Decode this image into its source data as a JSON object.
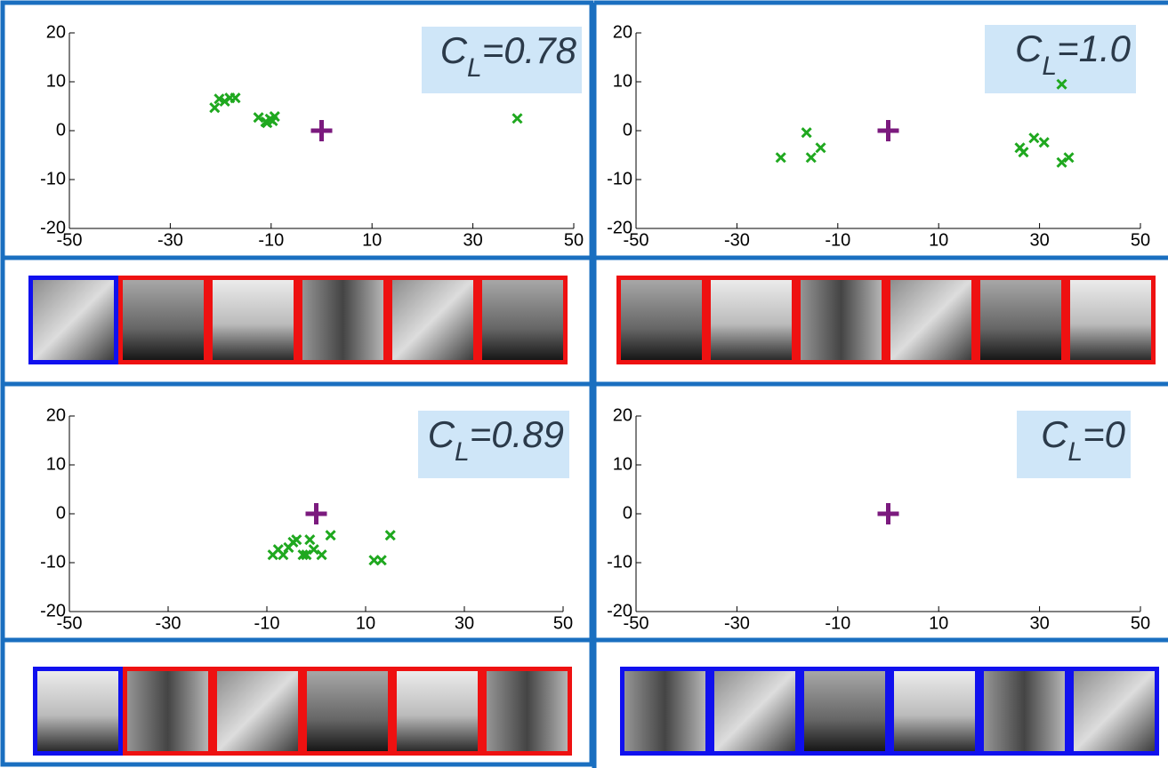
{
  "chart_data": [
    {
      "type": "scatter",
      "label": {
        "symbol": "C",
        "subscript": "L",
        "text": "=0.78"
      },
      "xlim": [
        -50,
        50
      ],
      "xticks": [
        -50,
        -30,
        -10,
        10,
        30,
        50
      ],
      "ylim": [
        -20,
        20
      ],
      "yticks": [
        -20,
        -10,
        0,
        10,
        20
      ],
      "points": {
        "color": "#1fa81f",
        "x": [
          -21.2,
          -20.3,
          -19.2,
          -18.2,
          -17.1,
          -12.5,
          -11.1,
          -10.2,
          -9.3,
          -10.8,
          -9.7,
          38.8
        ],
        "y": [
          4.7,
          6.5,
          6,
          6.7,
          6.7,
          2.7,
          1.8,
          2.4,
          2.9,
          1.6,
          2,
          2.5
        ]
      },
      "center": {
        "color": "#7b1a7e",
        "x": 0,
        "y": 0
      }
    },
    {
      "type": "scatter",
      "label": {
        "symbol": "C",
        "subscript": "L",
        "text": "=1.0"
      },
      "xlim": [
        -50,
        50
      ],
      "xticks": [
        -50,
        -30,
        -10,
        10,
        30,
        50
      ],
      "ylim": [
        -20,
        20
      ],
      "yticks": [
        -20,
        -10,
        0,
        10,
        20
      ],
      "points": {
        "color": "#1fa81f",
        "x": [
          -21.3,
          -16.2,
          -15.3,
          -13.4,
          26.1,
          26.8,
          28.9,
          30.9,
          34.4,
          34.4,
          35.8
        ],
        "y": [
          -5.5,
          -0.4,
          -5.5,
          -3.5,
          -3.5,
          -4.4,
          -1.5,
          -2.4,
          9.5,
          -6.5,
          -5.5
        ]
      },
      "center": {
        "color": "#7b1a7e",
        "x": 0,
        "y": 0
      }
    },
    {
      "type": "scatter",
      "label": {
        "symbol": "C",
        "subscript": "L",
        "text": "=0.89"
      },
      "xlim": [
        -50,
        50
      ],
      "xticks": [
        -50,
        -30,
        -10,
        10,
        30,
        50
      ],
      "ylim": [
        -20,
        20
      ],
      "yticks": [
        -20,
        -10,
        0,
        10,
        20
      ],
      "points": {
        "color": "#1fa81f",
        "x": [
          -8.8,
          -7.7,
          -6.7,
          -5.6,
          -4.7,
          -4,
          -2.7,
          -2,
          -1.3,
          -0.5,
          1.1,
          2.9,
          11.7,
          13.2,
          15
        ],
        "y": [
          -8.4,
          -7.3,
          -8.4,
          -6.9,
          -5.8,
          -5.3,
          -8.4,
          -8.4,
          -5.3,
          -7.3,
          -8.4,
          -4.4,
          -9.5,
          -9.5,
          -4.4
        ]
      },
      "center": {
        "color": "#7b1a7e",
        "x": 0,
        "y": 0
      }
    },
    {
      "type": "scatter",
      "label": {
        "symbol": "C",
        "subscript": "L",
        "text": "=0"
      },
      "xlim": [
        -50,
        50
      ],
      "xticks": [
        -50,
        -30,
        -10,
        10,
        30,
        50
      ],
      "ylim": [
        -20,
        20
      ],
      "yticks": [
        -20,
        -10,
        0,
        10,
        20
      ],
      "points": {
        "color": "#1fa81f",
        "x": [],
        "y": []
      },
      "center": {
        "color": "#7b1a7e",
        "x": 0,
        "y": 0
      }
    }
  ]
}
